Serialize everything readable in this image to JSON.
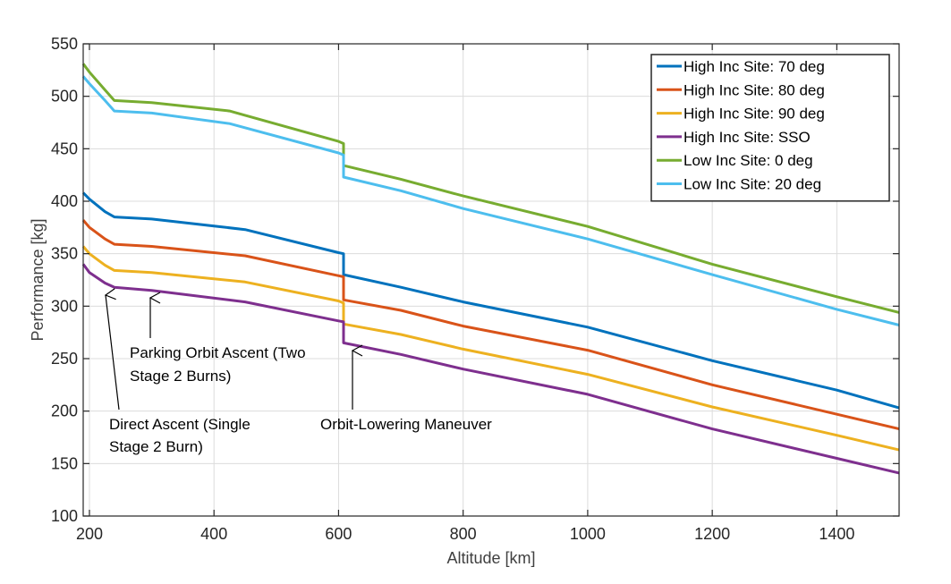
{
  "chart_data": {
    "type": "line",
    "xlabel": "Altitude [km]",
    "ylabel": "Performance [kg]",
    "xlim": [
      190,
      1500
    ],
    "ylim": [
      100,
      550
    ],
    "xticks": [
      200,
      400,
      600,
      800,
      1000,
      1200,
      1400
    ],
    "yticks": [
      100,
      150,
      200,
      250,
      300,
      350,
      400,
      450,
      500,
      550
    ],
    "grid": true,
    "legend_position": "top-right",
    "series": [
      {
        "name": "High Inc Site: 70 deg",
        "color": "#0072BD",
        "x": [
          190,
          200,
          225,
          240,
          300,
          450,
          600,
          608,
          608,
          700,
          800,
          1000,
          1200,
          1400,
          1500
        ],
        "y": [
          408,
          402,
          390,
          385,
          383,
          373,
          351,
          350,
          330,
          318,
          304,
          280,
          248,
          220,
          203
        ]
      },
      {
        "name": "High Inc Site: 80 deg",
        "color": "#D95319",
        "x": [
          190,
          200,
          225,
          240,
          300,
          450,
          600,
          608,
          608,
          700,
          800,
          1000,
          1200,
          1400,
          1500
        ],
        "y": [
          382,
          375,
          364,
          359,
          357,
          348,
          329,
          328,
          306,
          296,
          281,
          258,
          225,
          197,
          183
        ]
      },
      {
        "name": "High Inc Site: 90 deg",
        "color": "#EDB120",
        "x": [
          190,
          200,
          225,
          240,
          300,
          450,
          600,
          608,
          608,
          700,
          800,
          1000,
          1200,
          1400,
          1500
        ],
        "y": [
          357,
          350,
          339,
          334,
          332,
          323,
          305,
          303,
          283,
          273,
          259,
          235,
          204,
          177,
          163
        ]
      },
      {
        "name": "High Inc Site: SSO",
        "color": "#7E2F8E",
        "x": [
          190,
          200,
          225,
          240,
          300,
          450,
          600,
          608,
          608,
          700,
          800,
          1000,
          1200,
          1400,
          1500
        ],
        "y": [
          340,
          332,
          322,
          318,
          315,
          304,
          286,
          285,
          265,
          254,
          240,
          216,
          183,
          155,
          141
        ]
      },
      {
        "name": "Low Inc Site: 0 deg",
        "color": "#77AC30",
        "x": [
          190,
          200,
          225,
          240,
          300,
          425,
          600,
          608,
          608,
          700,
          800,
          1000,
          1200,
          1400,
          1500
        ],
        "y": [
          531,
          523,
          506,
          496,
          494,
          486,
          457,
          455,
          434,
          421,
          405,
          376,
          340,
          309,
          294
        ]
      },
      {
        "name": "Low Inc Site: 20 deg",
        "color": "#4DBEEE",
        "x": [
          190,
          200,
          225,
          240,
          300,
          425,
          600,
          608,
          608,
          700,
          800,
          1000,
          1200,
          1400,
          1500
        ],
        "y": [
          519,
          512,
          496,
          486,
          484,
          474,
          446,
          444,
          423,
          410,
          393,
          364,
          330,
          297,
          282
        ]
      }
    ],
    "annotations": [
      {
        "id": "direct-ascent",
        "lines": [
          "Direct Ascent (Single",
          "Stage 2 Burn)"
        ]
      },
      {
        "id": "parking-orbit",
        "lines": [
          "Parking Orbit Ascent (Two",
          "Stage 2 Burns)"
        ]
      },
      {
        "id": "orbit-lowering",
        "lines": [
          "Orbit-Lowering Maneuver"
        ]
      }
    ]
  }
}
